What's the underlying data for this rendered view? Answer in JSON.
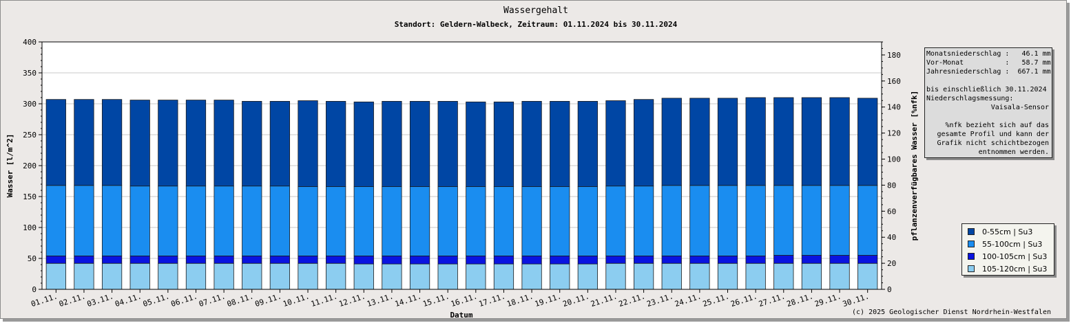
{
  "title": "Wassergehalt",
  "subtitle": "Standort: Geldern-Walbeck, Zeitraum: 01.11.2024 bis 30.11.2024",
  "copyright": "(c) 2025 Geologischer Dienst Nordrhein-Westfalen",
  "info": {
    "line1": "Monatsniederschlag :   46.1 mm",
    "line2": "Vor-Monat          :   58.7 mm",
    "line3": "Jahresniederschlag :  667.1 mm",
    "line4": "bis einschließlich 30.11.2024",
    "line5": "Niederschlagsmessung:",
    "line6": "Vaisala-Sensor",
    "line7": "%nfk bezieht sich auf das",
    "line8": "gesamte Profil und kann der",
    "line9": "Grafik nicht schichtbezogen",
    "line10": "entnommen werden."
  },
  "colors": {
    "layer_0_55": "#0046a4",
    "layer_55_100": "#1a8df0",
    "layer_100_105": "#0a14e0",
    "layer_105_120": "#8ccdf0",
    "plot_bg": "#ffffff",
    "page_bg": "#ece9e7"
  },
  "chart_data": {
    "type": "bar",
    "stacked": true,
    "title": "Wassergehalt",
    "subtitle": "Standort: Geldern-Walbeck, Zeitraum: 01.11.2024 bis 30.11.2024",
    "xlabel": "Datum",
    "ylabel": "Wasser [l/m^2]",
    "y2label": "pflanzenverfügbares Wasser [%nfk]",
    "ylim": [
      0,
      400
    ],
    "y2lim": [
      0,
      190
    ],
    "yticks": [
      "0",
      "50",
      "100",
      "150",
      "200",
      "250",
      "300",
      "350",
      "400"
    ],
    "y2ticks": [
      "0",
      "20",
      "40",
      "60",
      "80",
      "100",
      "120",
      "140",
      "160",
      "180"
    ],
    "grid": true,
    "legend_position": "right",
    "categories": [
      "01.11.",
      "02.11.",
      "03.11.",
      "04.11.",
      "05.11.",
      "06.11.",
      "07.11.",
      "08.11.",
      "09.11.",
      "10.11.",
      "11.11.",
      "12.11.",
      "13.11.",
      "14.11.",
      "15.11.",
      "16.11.",
      "17.11.",
      "18.11.",
      "19.11.",
      "20.11.",
      "21.11.",
      "22.11.",
      "23.11.",
      "24.11.",
      "25.11.",
      "26.11.",
      "27.11.",
      "28.11.",
      "29.11.",
      "30.11."
    ],
    "series": [
      {
        "name": "105-120cm | Su3",
        "color": "#8ccdf0",
        "values": [
          42,
          42,
          42,
          42,
          42,
          42,
          42,
          42,
          42,
          42,
          42,
          41,
          41,
          41,
          41,
          41,
          41,
          41,
          41,
          41,
          42,
          42,
          42,
          42,
          42,
          42,
          42,
          42,
          42,
          42
        ]
      },
      {
        "name": "100-105cm | Su3",
        "color": "#0a14e0",
        "values": [
          12,
          12,
          12,
          12,
          12,
          12,
          12,
          12,
          12,
          12,
          12,
          13,
          13,
          13,
          13,
          13,
          13,
          13,
          13,
          13,
          12,
          12,
          12,
          12,
          12,
          12,
          13,
          13,
          13,
          13
        ]
      },
      {
        "name": "55-100cm | Su3",
        "color": "#1a8df0",
        "values": [
          114,
          114,
          114,
          113,
          113,
          113,
          113,
          113,
          113,
          112,
          112,
          112,
          112,
          112,
          112,
          112,
          112,
          112,
          112,
          112,
          113,
          113,
          114,
          114,
          114,
          114,
          113,
          113,
          113,
          113
        ]
      },
      {
        "name": "0-55cm | Su3",
        "color": "#0046a4",
        "values": [
          139,
          139,
          139,
          139,
          139,
          139,
          139,
          137,
          137,
          139,
          138,
          137,
          138,
          138,
          138,
          137,
          137,
          138,
          138,
          138,
          138,
          140,
          141,
          141,
          141,
          142,
          142,
          142,
          142,
          141
        ]
      }
    ]
  }
}
